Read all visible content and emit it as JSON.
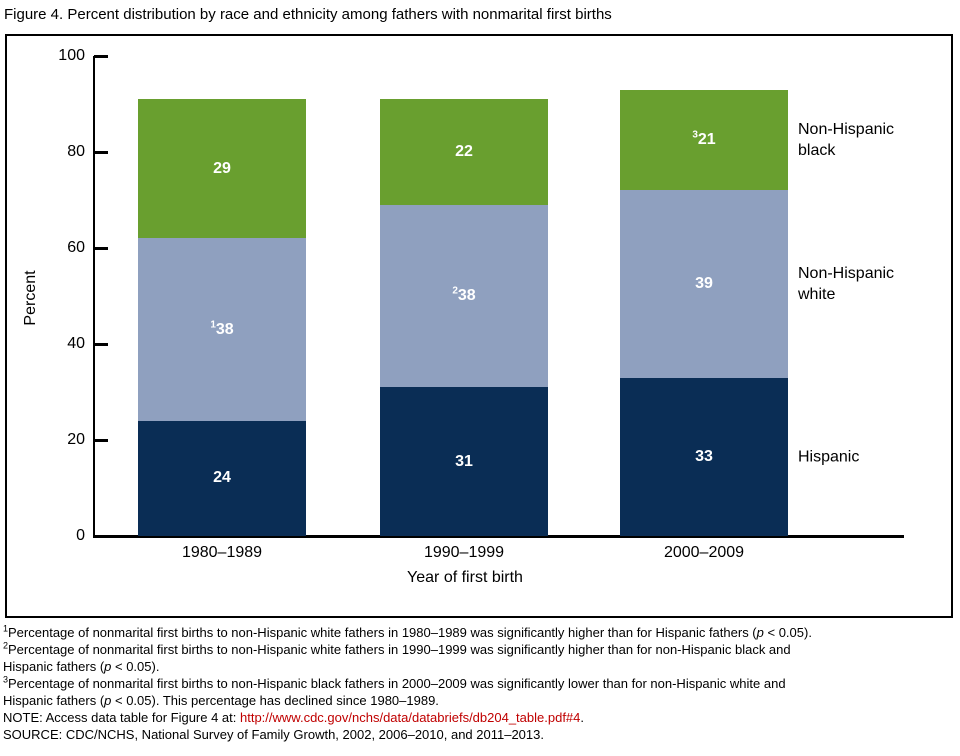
{
  "title": "Figure 4. Percent distribution by race and ethnicity among fathers with nonmarital first births",
  "chart_data": {
    "type": "bar",
    "variant": "stacked-vertical",
    "title": "Figure 4. Percent distribution by race and ethnicity among fathers with nonmarital first births",
    "categories": [
      "1980–1989",
      "1990–1999",
      "2000–2009"
    ],
    "series": [
      {
        "name": "Hispanic",
        "color": "#0a2d55",
        "values": [
          24,
          31,
          33
        ],
        "value_label_sups": [
          "",
          "",
          ""
        ]
      },
      {
        "name": "Non-Hispanic white",
        "color": "#8fa0bf",
        "values": [
          38,
          38,
          39
        ],
        "value_label_sups": [
          "1",
          "2",
          ""
        ]
      },
      {
        "name": "Non-Hispanic black",
        "color": "#699f2f",
        "values": [
          29,
          22,
          21
        ],
        "value_label_sups": [
          "",
          "",
          "3"
        ]
      }
    ],
    "stack_totals": [
      91,
      91,
      93
    ],
    "xlabel": "Year of first birth",
    "ylabel": "Percent",
    "ylim": [
      0,
      100
    ],
    "yticks": [
      0,
      20,
      40,
      60,
      80,
      100
    ],
    "grid": false,
    "legend_position": "right",
    "legend": [
      "Non-Hispanic black",
      "Non-Hispanic white",
      "Hispanic"
    ]
  },
  "colors": {
    "hispanic_navy": "#0a2d55",
    "nonhispanic_white_periwinkle": "#8fa0bf",
    "nonhispanic_black_green": "#699f2f",
    "link_red": "#c00000",
    "axis_black": "#000000"
  },
  "footnotes": [
    [
      {
        "sup": "1"
      },
      {
        "t": "Percentage of nonmarital first births to non-Hispanic white fathers in 1980–1989 was significantly higher than for Hispanic fathers ("
      },
      {
        "i": "p"
      },
      {
        "t": " < 0.05)."
      }
    ],
    [
      {
        "sup": "2"
      },
      {
        "t": "Percentage of nonmarital first births to non-Hispanic white fathers in 1990–1999 was significantly higher than for non-Hispanic black and"
      }
    ],
    [
      {
        "t": "Hispanic fathers ("
      },
      {
        "i": "p"
      },
      {
        "t": " < 0.05)."
      }
    ],
    [
      {
        "sup": "3"
      },
      {
        "t": "Percentage of nonmarital first births to non-Hispanic black fathers in 2000–2009 was significantly lower than for non-Hispanic white and"
      }
    ],
    [
      {
        "t": "Hispanic fathers ("
      },
      {
        "i": "p"
      },
      {
        "t": " < 0.05). This percentage has declined since 1980–1989."
      }
    ],
    [
      {
        "t": "NOTE: Access data table for Figure 4 at: "
      },
      {
        "a": "http://www.cdc.gov/nchs/data/databriefs/db204_table.pdf#4"
      },
      {
        "t": "."
      }
    ],
    [
      {
        "t": "SOURCE: CDC/NCHS, National Survey of Family Growth, 2002, 2006–2010, and 2011–2013."
      }
    ]
  ]
}
